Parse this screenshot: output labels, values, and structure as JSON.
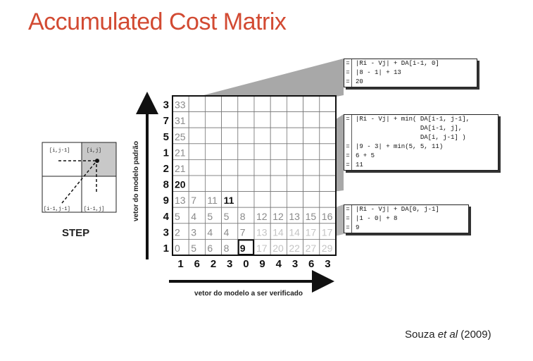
{
  "title": "Accumulated Cost Matrix",
  "citation": {
    "author": "Souza ",
    "etal": "et al",
    "year": " (2009)"
  },
  "step": {
    "label": "STEP",
    "cells": {
      "top_left": "[i,j-1]",
      "top_right": "[i,j]",
      "bottom_left": "[i-1,j-1]",
      "bottom_right": "[i-1,j]"
    }
  },
  "axes": {
    "y_label": "vetor do modelo padrão",
    "x_label": "vetor do modelo a ser verificado"
  },
  "pattern_vector": [
    "3",
    "7",
    "5",
    "1",
    "2",
    "8",
    "9",
    "4",
    "3",
    "1"
  ],
  "test_vector": [
    "1",
    "6",
    "2",
    "3",
    "0",
    "9",
    "4",
    "3",
    "6",
    "3"
  ],
  "matrix_rows": [
    [
      "33",
      "",
      "",
      "",
      "",
      "",
      "",
      "",
      "",
      ""
    ],
    [
      "31",
      "",
      "",
      "",
      "",
      "",
      "",
      "",
      "",
      ""
    ],
    [
      "25",
      "",
      "",
      "",
      "",
      "",
      "",
      "",
      "",
      ""
    ],
    [
      "21",
      "",
      "",
      "",
      "",
      "",
      "",
      "",
      "",
      ""
    ],
    [
      "21",
      "",
      "",
      "",
      "",
      "",
      "",
      "",
      "",
      ""
    ],
    [
      "20",
      "",
      "",
      "",
      "",
      "",
      "",
      "",
      "",
      ""
    ],
    [
      "13",
      "7",
      "11",
      "11",
      "",
      "",
      "",
      "",
      "",
      ""
    ],
    [
      "5",
      "4",
      "5",
      "5",
      "8",
      "12",
      "12",
      "13",
      "15",
      "16"
    ],
    [
      "2",
      "3",
      "4",
      "4",
      "7",
      "13",
      "14",
      "14",
      "17",
      "17"
    ],
    [
      "0",
      "5",
      "6",
      "8",
      "9",
      "17",
      "20",
      "22",
      "27",
      "29"
    ]
  ],
  "callouts": {
    "top": [
      "|Ri - Vj| + DA[i-1, 0]",
      "|8 - 1| + 13",
      "20"
    ],
    "middle": [
      "|Ri - Vj| + min( DA[i-1, j-1],",
      "                 DA[i-1, j],",
      "                 DA[i, j-1] )",
      "|9 - 3| + min(5, 5, 11)",
      "6 + 5",
      "11"
    ],
    "middle_eq": [
      "=",
      "",
      "",
      "=",
      "=",
      "="
    ],
    "bottom": [
      "|Ri - Vj| + DA[0, j-1]",
      "|1 - 0| + 8",
      "9"
    ]
  }
}
